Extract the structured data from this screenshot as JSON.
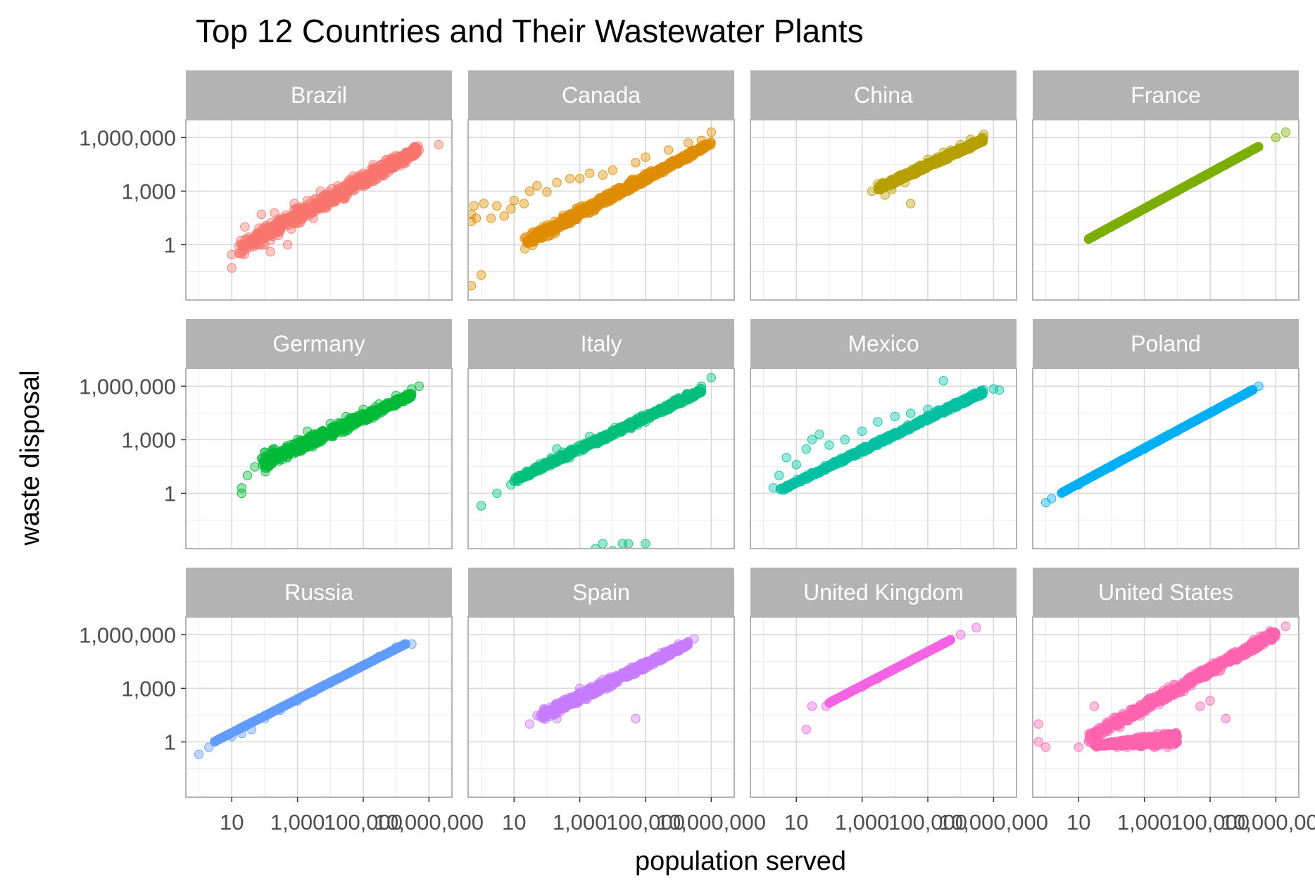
{
  "chart_data": {
    "type": "scatter",
    "title": "Top 12 Countries and Their Wastewater Plants",
    "xlabel": "population served",
    "ylabel": "waste disposal",
    "x_scale": "log10",
    "y_scale": "log10",
    "xlim": [
      0.4,
      50000000
    ],
    "ylim": [
      0.000794,
      10000000
    ],
    "x_ticks": [
      10,
      1000,
      100000,
      10000000
    ],
    "x_tick_labels": [
      "10",
      "1,000",
      "100,000",
      "10,000,000"
    ],
    "y_ticks": [
      1,
      1000,
      1000000
    ],
    "y_tick_labels": [
      "1",
      "1,000",
      "1,000,000"
    ],
    "grid": true,
    "legend": "none",
    "point_alpha": 0.4,
    "facets": [
      {
        "name": "Brazil",
        "color": "#F8766D",
        "points": [
          [
            10,
            0.05
          ],
          [
            10,
            0.28
          ],
          [
            20,
            1
          ],
          [
            25,
            10
          ],
          [
            60,
            1
          ],
          [
            80,
            50
          ],
          [
            100,
            1
          ],
          [
            150,
            0.4
          ],
          [
            200,
            60
          ],
          [
            300,
            25
          ],
          [
            500,
            1
          ],
          [
            800,
            200
          ],
          [
            1000,
            100
          ],
          [
            2000,
            300
          ],
          [
            3000,
            30
          ],
          [
            5000,
            1000
          ],
          [
            10000,
            600
          ],
          [
            20000,
            800
          ],
          [
            30000,
            2000
          ],
          [
            50000,
            7000
          ],
          [
            100000,
            10000
          ],
          [
            200000,
            30000
          ],
          [
            300000,
            8000
          ],
          [
            500000,
            60000
          ],
          [
            1000000,
            100000
          ],
          [
            2000000,
            150000
          ],
          [
            5000000,
            200000
          ],
          [
            20000000,
            400000
          ]
        ],
        "clouds": [
          {
            "x": [
              15,
              5000000
            ],
            "y_at_x0": [
              0.1,
              3
            ],
            "y_at_x1": [
              80000,
              600000
            ]
          }
        ]
      },
      {
        "name": "Canada",
        "color": "#DE8C00",
        "points": [
          [
            0.5,
            0.005
          ],
          [
            0.5,
            20
          ],
          [
            0.5,
            50
          ],
          [
            0.6,
            150
          ],
          [
            0.7,
            30
          ],
          [
            1,
            0.02
          ],
          [
            1.2,
            200
          ],
          [
            2,
            30
          ],
          [
            3,
            150
          ],
          [
            5,
            40
          ],
          [
            8,
            100
          ],
          [
            10,
            300
          ],
          [
            20,
            200
          ],
          [
            30,
            1000
          ],
          [
            50,
            2000
          ],
          [
            100,
            900
          ],
          [
            200,
            3000
          ],
          [
            500,
            5000
          ],
          [
            1000,
            5000
          ],
          [
            2000,
            10000
          ],
          [
            5000,
            8000
          ],
          [
            10000,
            15000
          ],
          [
            50000,
            40000
          ],
          [
            100000,
            80000
          ],
          [
            500000,
            200000
          ],
          [
            2000000,
            500000
          ],
          [
            5000000,
            700000
          ],
          [
            10000000,
            2000000
          ]
        ],
        "clouds": [
          {
            "x": [
              20,
              10000000
            ],
            "y_at_x0": [
              0.3,
              5
            ],
            "y_at_x1": [
              300000,
              800000
            ]
          }
        ]
      },
      {
        "name": "China",
        "color": "#B79F00",
        "points": [
          [
            2000,
            1000
          ],
          [
            3000,
            2500
          ],
          [
            5000,
            600
          ],
          [
            8000,
            1200
          ],
          [
            10000,
            5000
          ],
          [
            20000,
            3000
          ],
          [
            30000,
            200
          ],
          [
            40000,
            10000
          ],
          [
            50000,
            20000
          ],
          [
            80000,
            30000
          ],
          [
            100000,
            60000
          ],
          [
            200000,
            80000
          ],
          [
            300000,
            150000
          ],
          [
            500000,
            200000
          ],
          [
            1000000,
            400000
          ],
          [
            2000000,
            800000
          ],
          [
            5000000,
            1500000
          ]
        ],
        "clouds": [
          {
            "x": [
              3000,
              5000000
            ],
            "y_at_x0": [
              800,
              2500
            ],
            "y_at_x1": [
              500000,
              1200000
            ]
          }
        ]
      },
      {
        "name": "France",
        "color": "#7CAE00",
        "points": [
          [
            20,
            2
          ],
          [
            30,
            3
          ],
          [
            50,
            5
          ],
          [
            100,
            10
          ],
          [
            300,
            30
          ],
          [
            1000,
            100
          ],
          [
            3000,
            300
          ],
          [
            10000,
            1000
          ],
          [
            30000,
            3000
          ],
          [
            100000,
            10000
          ],
          [
            300000,
            30000
          ],
          [
            1000000,
            100000
          ],
          [
            3000000,
            300000
          ],
          [
            10000000,
            1000000
          ],
          [
            20000000,
            2000000
          ]
        ],
        "clouds": [
          {
            "x": [
              20,
              3000000
            ],
            "y_at_x0": [
              2,
              2.2
            ],
            "y_at_x1": [
              300000,
              330000
            ]
          }
        ]
      },
      {
        "name": "Germany",
        "color": "#00BA38",
        "points": [
          [
            20,
            1
          ],
          [
            20,
            2
          ],
          [
            30,
            10
          ],
          [
            50,
            30
          ],
          [
            100,
            200
          ],
          [
            200,
            300
          ],
          [
            500,
            100
          ],
          [
            1000,
            1000
          ],
          [
            2000,
            3000
          ],
          [
            3000,
            2000
          ],
          [
            10000,
            8000
          ],
          [
            30000,
            20000
          ],
          [
            100000,
            50000
          ],
          [
            300000,
            100000
          ],
          [
            1000000,
            300000
          ],
          [
            3000000,
            700000
          ],
          [
            5000000,
            1000000
          ]
        ],
        "clouds": [
          {
            "x": [
              80,
              3000000
            ],
            "y_at_x0": [
              10,
              200
            ],
            "y_at_x1": [
              200000,
              500000
            ]
          }
        ]
      },
      {
        "name": "Italy",
        "color": "#00BF7D",
        "points": [
          [
            1,
            0.2
          ],
          [
            3,
            1
          ],
          [
            8,
            3
          ],
          [
            10,
            5
          ],
          [
            30,
            10
          ],
          [
            100,
            40
          ],
          [
            200,
            300
          ],
          [
            300,
            200
          ],
          [
            500,
            100
          ],
          [
            1000,
            500
          ],
          [
            2000,
            1500
          ],
          [
            3000,
            0.000794
          ],
          [
            5000,
            0.0015
          ],
          [
            10000,
            0.0006
          ],
          [
            20000,
            0.0015
          ],
          [
            30000,
            0.0015
          ],
          [
            50000,
            0.00035
          ],
          [
            100000,
            0.0015
          ],
          [
            100000,
            10000
          ],
          [
            300000,
            50000
          ],
          [
            1000000,
            200000
          ],
          [
            3000000,
            400000
          ],
          [
            5000000,
            1000000
          ],
          [
            10000000,
            3000000
          ]
        ],
        "clouds": [
          {
            "x": [
              10,
              5000000
            ],
            "y_at_x0": [
              3,
              10
            ],
            "y_at_x1": [
              300000,
              1000000
            ]
          }
        ]
      },
      {
        "name": "Mexico",
        "color": "#00C1A3",
        "points": [
          [
            2,
            2
          ],
          [
            3,
            10
          ],
          [
            5,
            100
          ],
          [
            10,
            40
          ],
          [
            20,
            300
          ],
          [
            30,
            1000
          ],
          [
            50,
            2000
          ],
          [
            100,
            500
          ],
          [
            300,
            1000
          ],
          [
            1000,
            3000
          ],
          [
            3000,
            10000
          ],
          [
            10000,
            20000
          ],
          [
            30000,
            30000
          ],
          [
            100000,
            50000
          ],
          [
            300000,
            2000000
          ],
          [
            1000000,
            100000
          ],
          [
            3000000,
            300000
          ],
          [
            10000000,
            700000
          ],
          [
            15000000,
            600000
          ]
        ],
        "clouds": [
          {
            "x": [
              3,
              5000000
            ],
            "y_at_x0": [
              1,
              2
            ],
            "y_at_x1": [
              300000,
              900000
            ]
          }
        ]
      },
      {
        "name": "Poland",
        "color": "#00B0F6",
        "points": [
          [
            1,
            0.3
          ],
          [
            1.5,
            0.5
          ],
          [
            3,
            1
          ],
          [
            10,
            3
          ],
          [
            30,
            10
          ],
          [
            100,
            30
          ],
          [
            300,
            100
          ],
          [
            1000,
            300
          ],
          [
            3000,
            1000
          ],
          [
            10000,
            3000
          ],
          [
            30000,
            10000
          ],
          [
            100000,
            30000
          ],
          [
            300000,
            100000
          ],
          [
            1000000,
            300000
          ],
          [
            3000000,
            1000000
          ]
        ],
        "clouds": [
          {
            "x": [
              3,
              2000000
            ],
            "y_at_x0": [
              1,
              1.1
            ],
            "y_at_x1": [
              600000,
              660000
            ]
          }
        ]
      },
      {
        "name": "Russia",
        "color": "#619CFF",
        "points": [
          [
            1,
            0.2
          ],
          [
            2,
            0.5
          ],
          [
            3,
            1
          ],
          [
            10,
            2
          ],
          [
            20,
            3
          ],
          [
            40,
            5
          ],
          [
            100,
            20
          ],
          [
            300,
            60
          ],
          [
            1000,
            200
          ],
          [
            3000,
            600
          ],
          [
            10000,
            2000
          ],
          [
            30000,
            6000
          ],
          [
            100000,
            20000
          ],
          [
            300000,
            60000
          ],
          [
            1000000,
            200000
          ],
          [
            3000000,
            300000
          ]
        ],
        "clouds": [
          {
            "x": [
              3,
              2000000
            ],
            "y_at_x0": [
              1,
              1.1
            ],
            "y_at_x1": [
              300000,
              330000
            ]
          }
        ]
      },
      {
        "name": "Spain",
        "color": "#C77CFF",
        "points": [
          [
            30,
            10
          ],
          [
            50,
            30
          ],
          [
            100,
            50
          ],
          [
            200,
            20
          ],
          [
            300,
            100
          ],
          [
            500,
            300
          ],
          [
            1000,
            1000
          ],
          [
            2000,
            500
          ],
          [
            5000,
            3000
          ],
          [
            10000,
            2000
          ],
          [
            30000,
            10000
          ],
          [
            50000,
            20
          ],
          [
            100000,
            30000
          ],
          [
            300000,
            100000
          ],
          [
            1000000,
            300000
          ],
          [
            3000000,
            600000
          ]
        ],
        "clouds": [
          {
            "x": [
              60,
              2000000
            ],
            "y_at_x0": [
              8,
              80
            ],
            "y_at_x1": [
              200000,
              500000
            ]
          }
        ]
      },
      {
        "name": "United Kingdom",
        "color": "#F564E3",
        "points": [
          [
            20,
            5
          ],
          [
            30,
            100
          ],
          [
            80,
            100
          ],
          [
            100,
            150
          ],
          [
            300,
            400
          ],
          [
            1000,
            1200
          ],
          [
            3000,
            3500
          ],
          [
            10000,
            12000
          ],
          [
            30000,
            35000
          ],
          [
            100000,
            120000
          ],
          [
            300000,
            350000
          ],
          [
            1000000,
            1000000
          ],
          [
            3000000,
            2500000
          ]
        ],
        "clouds": [
          {
            "x": [
              100,
              500000
            ],
            "y_at_x0": [
              150,
              160
            ],
            "y_at_x1": [
              500000,
              550000
            ]
          }
        ]
      },
      {
        "name": "United States",
        "color": "#FF64B0",
        "points": [
          [
            0.6,
            1
          ],
          [
            0.6,
            10
          ],
          [
            1,
            0.5
          ],
          [
            10,
            0.5
          ],
          [
            20,
            1
          ],
          [
            30,
            100
          ],
          [
            100,
            1
          ],
          [
            150,
            0.5
          ],
          [
            300,
            0.5
          ],
          [
            1000,
            1
          ],
          [
            2000,
            0.5
          ],
          [
            5000,
            0.5
          ],
          [
            10000,
            1
          ],
          [
            50000,
            100
          ],
          [
            100000,
            200
          ],
          [
            300000,
            20
          ],
          [
            1000000,
            100000
          ],
          [
            3000000,
            200000
          ],
          [
            10000000,
            1000000
          ],
          [
            20000000,
            3000000
          ]
        ],
        "clouds": [
          {
            "x": [
              20,
              10000000
            ],
            "y_at_x0": [
              0.5,
              5
            ],
            "y_at_x1": [
              500000,
              3000000
            ]
          },
          {
            "x": [
              30,
              10000
            ],
            "y_at_x0": [
              0.5,
              0.8
            ],
            "y_at_x1": [
              0.5,
              5
            ]
          }
        ]
      }
    ]
  }
}
